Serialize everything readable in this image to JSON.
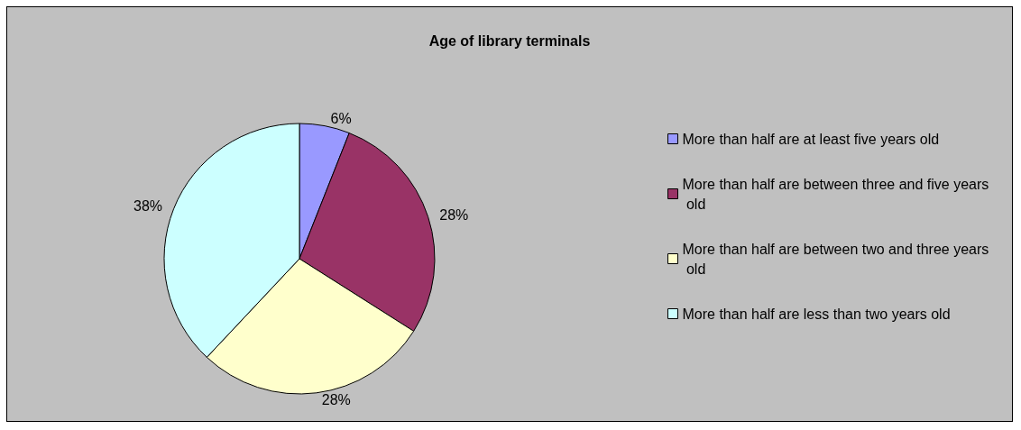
{
  "chart_data": {
    "type": "pie",
    "title": "Age of library terminals",
    "categories": [
      "More than half are at least five years old",
      "More than half are between three and five years old",
      "More than half are between two and three years old",
      "More than half are less than two years old"
    ],
    "values": [
      6,
      28,
      28,
      38
    ],
    "value_labels": [
      "6%",
      "28%",
      "28%",
      "38%"
    ],
    "colors": [
      "#9999ff",
      "#993366",
      "#ffffcc",
      "#ccffff"
    ],
    "legend": "right"
  }
}
